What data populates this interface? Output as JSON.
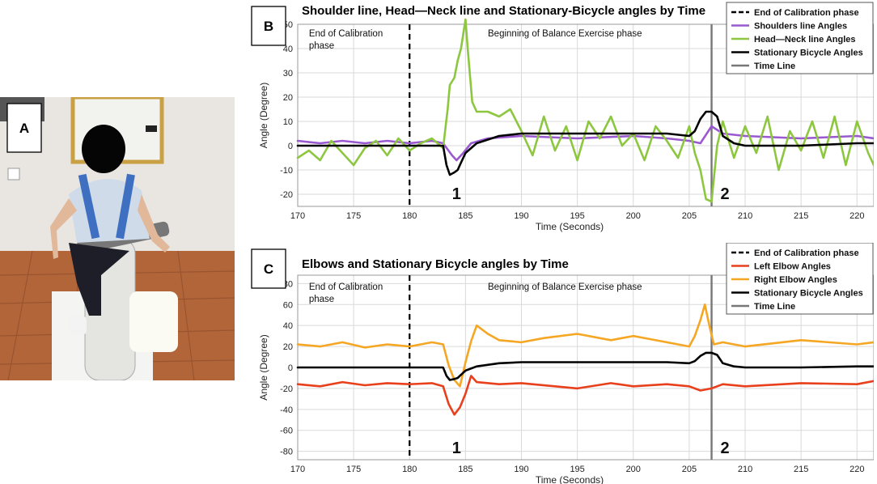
{
  "figure": {
    "panel_a_label": "A",
    "colors": {
      "calibration": "#000000",
      "shoulders": "#9b59d0",
      "head_neck": "#8dc63f",
      "bicycle": "#000000",
      "time_line": "#777777",
      "left_elbow": "#e8401c",
      "right_elbow": "#f5a623"
    }
  },
  "chart_data": [
    {
      "id": "B",
      "type": "line",
      "panel_label": "B",
      "title": "Shoulder line, Head—Neck line and Stationary-Bicycle angles by Time",
      "xlabel": "Time (Seconds)",
      "ylabel": "Angle (Degree)",
      "xlim": [
        170,
        221.5
      ],
      "ylim": [
        -25,
        50
      ],
      "xticks": [
        170,
        175,
        180,
        185,
        190,
        195,
        200,
        205,
        210,
        215,
        220
      ],
      "yticks": [
        -20,
        -10,
        0,
        10,
        20,
        30,
        40,
        50
      ],
      "grid": true,
      "legend_position": "top-right",
      "annotations": [
        {
          "lines": [
            "End of Calibration",
            "phase"
          ],
          "x": 171,
          "y": 45
        },
        {
          "lines": [
            "Beginning of Balance Exercise phase"
          ],
          "x": 187,
          "y": 45
        }
      ],
      "markers": [
        {
          "label": "1",
          "x": 184.2,
          "y": -22
        },
        {
          "label": "2",
          "x": 208.2,
          "y": -22
        }
      ],
      "vlines": [
        {
          "name": "End of Calibration phase",
          "x": 180,
          "style": "dashed",
          "color_key": "calibration"
        },
        {
          "name": "Time Line",
          "x": 207,
          "style": "solid",
          "color_key": "time_line"
        }
      ],
      "series": [
        {
          "name": "Shoulders line Angles",
          "color_key": "shoulders",
          "x": [
            170,
            172,
            174,
            176,
            178,
            180,
            182,
            183,
            183.8,
            184.2,
            184.8,
            185.5,
            187,
            190,
            195,
            200,
            203,
            205,
            206,
            207,
            208,
            210,
            215,
            220,
            221.5
          ],
          "y": [
            2,
            1,
            2,
            1,
            2,
            1,
            2,
            1,
            -4,
            -6,
            -3,
            1,
            3,
            4,
            3,
            4,
            3,
            2,
            1,
            8,
            5,
            4,
            3,
            4,
            3
          ]
        },
        {
          "name": "Head—Neck line Angles",
          "color_key": "head_neck",
          "x": [
            170,
            171,
            172,
            173,
            174,
            175,
            176,
            177,
            178,
            179,
            180,
            181,
            182,
            183,
            183.4,
            183.6,
            184,
            184.3,
            184.6,
            185,
            185.2,
            185.6,
            186,
            187,
            188,
            189,
            190,
            191,
            192,
            193,
            194,
            195,
            196,
            197,
            198,
            199,
            200,
            201,
            202,
            203,
            204,
            205,
            205.5,
            206,
            206.5,
            207,
            207.5,
            208,
            209,
            210,
            211,
            212,
            213,
            214,
            215,
            216,
            217,
            218,
            219,
            220,
            221,
            221.5
          ],
          "y": [
            -5,
            -2,
            -6,
            2,
            -3,
            -8,
            -1,
            2,
            -4,
            3,
            -2,
            1,
            3,
            -1,
            15,
            25,
            28,
            35,
            40,
            52,
            40,
            18,
            14,
            14,
            12,
            15,
            6,
            -4,
            12,
            -2,
            8,
            -6,
            10,
            3,
            12,
            0,
            5,
            -6,
            8,
            2,
            -5,
            8,
            -3,
            -10,
            -22,
            -23,
            0,
            10,
            -5,
            8,
            -3,
            12,
            -10,
            6,
            -2,
            10,
            -5,
            12,
            -8,
            10,
            -3,
            -8
          ]
        },
        {
          "name": "Stationary Bicycle Angles",
          "color_key": "bicycle",
          "x": [
            170,
            183,
            183.3,
            183.6,
            184,
            184.3,
            184.6,
            185,
            186,
            188,
            190,
            195,
            200,
            203,
            205,
            205.5,
            206,
            206.5,
            207,
            207.5,
            208,
            209,
            210,
            215,
            220,
            221.5
          ],
          "y": [
            0,
            0,
            -8,
            -12,
            -11,
            -10,
            -7,
            -3,
            1,
            4,
            5,
            5,
            5,
            5,
            4,
            6,
            11,
            14,
            14,
            12,
            4,
            1,
            0,
            0,
            1,
            1
          ]
        }
      ]
    },
    {
      "id": "C",
      "type": "line",
      "panel_label": "C",
      "title": "Elbows and Stationary Bicycle angles by Time",
      "xlabel": "Time (Seconds)",
      "ylabel": "Angle (Degree)",
      "xlim": [
        170,
        221.5
      ],
      "ylim": [
        -88,
        88
      ],
      "xticks": [
        170,
        175,
        180,
        185,
        190,
        195,
        200,
        205,
        210,
        215,
        220
      ],
      "yticks": [
        -80,
        -60,
        -40,
        -20,
        0,
        20,
        40,
        60,
        80
      ],
      "grid": true,
      "legend_position": "top-right",
      "annotations": [
        {
          "lines": [
            "End of Calibration",
            "phase"
          ],
          "x": 171,
          "y": 74
        },
        {
          "lines": [
            "Beginning of Balance Exercise phase"
          ],
          "x": 187,
          "y": 74
        }
      ],
      "markers": [
        {
          "label": "1",
          "x": 184.2,
          "y": -82
        },
        {
          "label": "2",
          "x": 208.2,
          "y": -82
        }
      ],
      "vlines": [
        {
          "name": "End of Calibration phase",
          "x": 180,
          "style": "dashed",
          "color_key": "calibration"
        },
        {
          "name": "Time Line",
          "x": 207,
          "style": "solid",
          "color_key": "time_line"
        }
      ],
      "series": [
        {
          "name": "Left Elbow Angles",
          "color_key": "left_elbow",
          "x": [
            170,
            172,
            174,
            176,
            178,
            180,
            182,
            183,
            183.5,
            184,
            184.5,
            185,
            185.5,
            186,
            188,
            190,
            193,
            195,
            198,
            200,
            203,
            205,
            206,
            207,
            208,
            210,
            215,
            220,
            221.5
          ],
          "y": [
            -16,
            -18,
            -14,
            -17,
            -15,
            -16,
            -15,
            -18,
            -35,
            -45,
            -38,
            -25,
            -8,
            -14,
            -16,
            -15,
            -18,
            -20,
            -15,
            -18,
            -16,
            -18,
            -22,
            -20,
            -16,
            -18,
            -15,
            -16,
            -13
          ]
        },
        {
          "name": "Right Elbow Angles",
          "color_key": "right_elbow",
          "x": [
            170,
            172,
            174,
            176,
            178,
            180,
            182,
            183,
            183.5,
            184,
            184.5,
            185,
            185.5,
            186,
            187,
            188,
            190,
            192,
            195,
            198,
            200,
            203,
            205,
            205.5,
            206,
            206.4,
            206.8,
            207.2,
            208,
            210,
            215,
            220,
            221.5
          ],
          "y": [
            22,
            20,
            24,
            19,
            22,
            20,
            24,
            22,
            2,
            -12,
            -18,
            5,
            25,
            40,
            32,
            26,
            24,
            28,
            32,
            26,
            30,
            24,
            20,
            30,
            45,
            60,
            40,
            22,
            24,
            20,
            26,
            22,
            24
          ]
        },
        {
          "name": "Stationary Bicycle Angles",
          "color_key": "bicycle",
          "x": [
            170,
            183,
            183.3,
            183.6,
            184,
            184.3,
            184.6,
            185,
            186,
            188,
            190,
            195,
            200,
            203,
            205,
            205.5,
            206,
            206.5,
            207,
            207.5,
            208,
            209,
            210,
            215,
            220,
            221.5
          ],
          "y": [
            0,
            0,
            -8,
            -12,
            -11,
            -10,
            -7,
            -3,
            1,
            4,
            5,
            5,
            5,
            5,
            4,
            6,
            11,
            14,
            14,
            12,
            4,
            1,
            0,
            0,
            1,
            1
          ]
        }
      ]
    }
  ],
  "legends": {
    "B": [
      {
        "label": "End of Calibration phase",
        "color_key": "calibration",
        "style": "dashed"
      },
      {
        "label": "Shoulders line Angles",
        "color_key": "shoulders",
        "style": "solid"
      },
      {
        "label": "Head—Neck line Angles",
        "color_key": "head_neck",
        "style": "solid"
      },
      {
        "label": "Stationary Bicycle Angles",
        "color_key": "bicycle",
        "style": "solid"
      },
      {
        "label": "Time Line",
        "color_key": "time_line",
        "style": "solid"
      }
    ],
    "C": [
      {
        "label": "End of Calibration phase",
        "color_key": "calibration",
        "style": "dashed"
      },
      {
        "label": "Left Elbow Angles",
        "color_key": "left_elbow",
        "style": "solid"
      },
      {
        "label": "Right Elbow Angles",
        "color_key": "right_elbow",
        "style": "solid"
      },
      {
        "label": "Stationary Bicycle Angles",
        "color_key": "bicycle",
        "style": "solid"
      },
      {
        "label": "Time Line",
        "color_key": "time_line",
        "style": "solid"
      }
    ]
  }
}
